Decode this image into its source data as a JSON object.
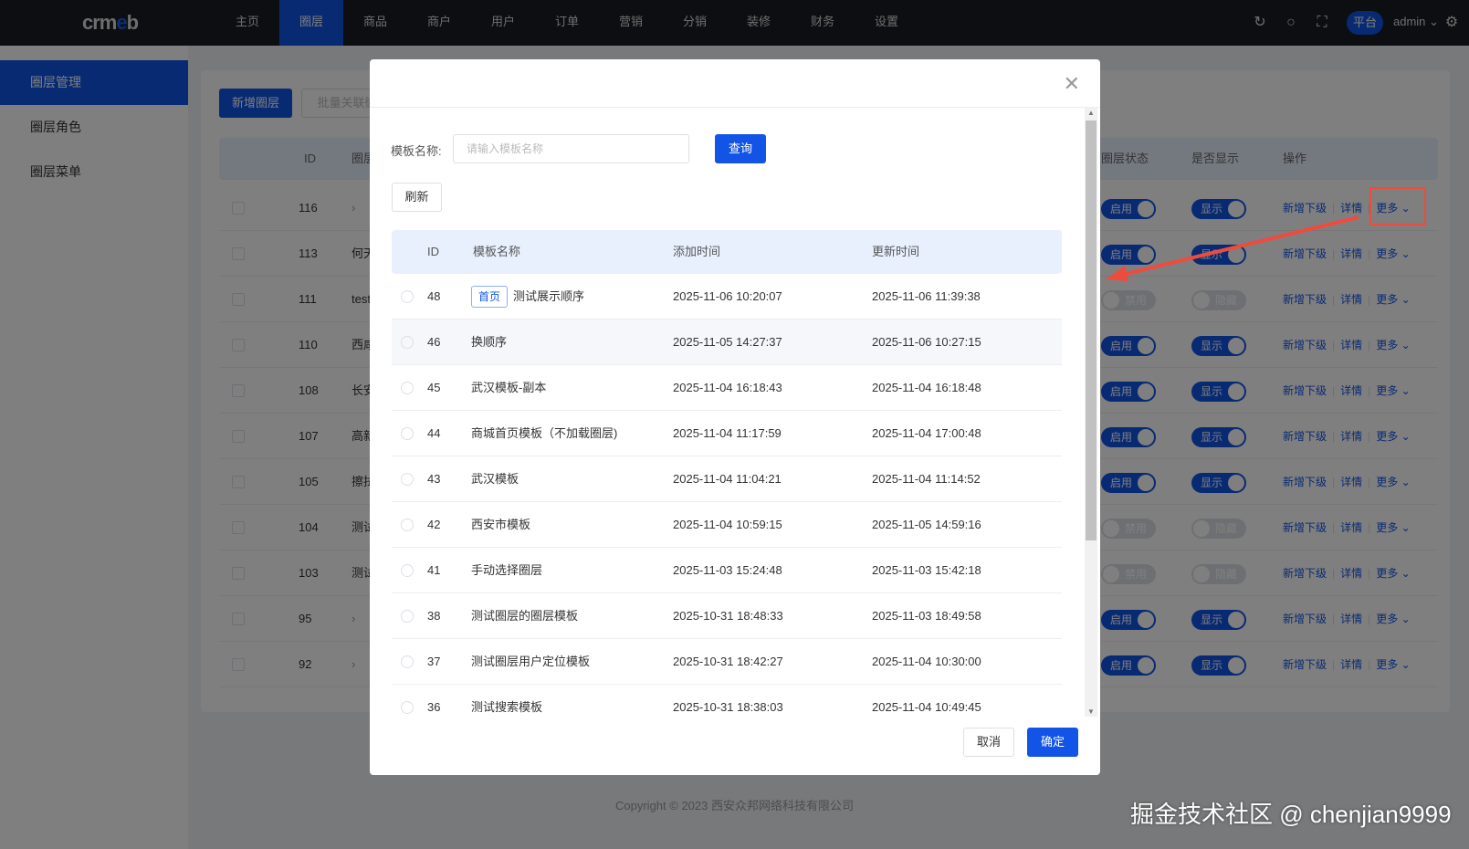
{
  "topnav": {
    "logo": "crmeb",
    "items": [
      "主页",
      "圈层",
      "商品",
      "商户",
      "用户",
      "订单",
      "营销",
      "分销",
      "装修",
      "财务",
      "设置"
    ],
    "active_index": 1,
    "platform": "平台",
    "user": "admin",
    "icons": [
      "refresh-icon",
      "search-icon",
      "fullscreen-icon",
      "gear-icon"
    ]
  },
  "sidebar": {
    "items": [
      "圈层管理",
      "圈层角色",
      "圈层菜单"
    ],
    "active_index": 0
  },
  "toolbar": {
    "add_label": "新增圈层",
    "batch_label": "批量关联微"
  },
  "bg_table": {
    "headers": {
      "id": "ID",
      "name": "圈层",
      "status": "圈层状态",
      "display": "是否显示",
      "actions": "操作"
    },
    "action_labels": {
      "add_child": "新增下级",
      "detail": "详情",
      "more": "更多"
    },
    "toggle_labels": {
      "on": "启用",
      "off": "禁用",
      "show": "显示",
      "hide": "隐藏"
    },
    "rows": [
      {
        "id": "116",
        "name": "",
        "expand": true,
        "enabled": true
      },
      {
        "id": "113",
        "name": "何天",
        "expand": false,
        "enabled": true
      },
      {
        "id": "111",
        "name": "test",
        "expand": false,
        "enabled": false
      },
      {
        "id": "110",
        "name": "西咸",
        "expand": false,
        "enabled": true
      },
      {
        "id": "108",
        "name": "长安",
        "expand": false,
        "enabled": true
      },
      {
        "id": "107",
        "name": "高新",
        "expand": false,
        "enabled": true
      },
      {
        "id": "105",
        "name": "擦拭",
        "expand": false,
        "enabled": true
      },
      {
        "id": "104",
        "name": "测试",
        "expand": false,
        "enabled": false
      },
      {
        "id": "103",
        "name": "测试",
        "expand": false,
        "enabled": false
      },
      {
        "id": "95",
        "name": "",
        "expand": true,
        "enabled": true
      },
      {
        "id": "92",
        "name": "",
        "expand": true,
        "enabled": true
      }
    ]
  },
  "footer": {
    "copyright": "Copyright © 2023 西安众邦网络科技有限公司"
  },
  "modal": {
    "search_label": "模板名称:",
    "search_placeholder": "请输入模板名称",
    "query_label": "查询",
    "refresh_label": "刷新",
    "cancel_label": "取消",
    "confirm_label": "确定",
    "headers": {
      "id": "ID",
      "name": "模板名称",
      "created": "添加时间",
      "updated": "更新时间"
    },
    "rows": [
      {
        "id": "48",
        "tag": "首页",
        "name": "测试展示顺序",
        "created": "2025-11-06 10:20:07",
        "updated": "2025-11-06 11:39:38"
      },
      {
        "id": "46",
        "tag": "",
        "name": "换顺序",
        "created": "2025-11-05 14:27:37",
        "updated": "2025-11-06 10:27:15"
      },
      {
        "id": "45",
        "tag": "",
        "name": "武汉模板-副本",
        "created": "2025-11-04 16:18:43",
        "updated": "2025-11-04 16:18:48"
      },
      {
        "id": "44",
        "tag": "",
        "name": "商城首页模板（不加载圈层)",
        "created": "2025-11-04 11:17:59",
        "updated": "2025-11-04 17:00:48"
      },
      {
        "id": "43",
        "tag": "",
        "name": "武汉模板",
        "created": "2025-11-04 11:04:21",
        "updated": "2025-11-04 11:14:52"
      },
      {
        "id": "42",
        "tag": "",
        "name": "西安市模板",
        "created": "2025-11-04 10:59:15",
        "updated": "2025-11-05 14:59:16"
      },
      {
        "id": "41",
        "tag": "",
        "name": "手动选择圈层",
        "created": "2025-11-03 15:24:48",
        "updated": "2025-11-03 15:42:18"
      },
      {
        "id": "38",
        "tag": "",
        "name": "测试圈层的圈层模板",
        "created": "2025-10-31 18:48:33",
        "updated": "2025-11-03 18:49:58"
      },
      {
        "id": "37",
        "tag": "",
        "name": "测试圈层用户定位模板",
        "created": "2025-10-31 18:42:27",
        "updated": "2025-11-04 10:30:00"
      },
      {
        "id": "36",
        "tag": "",
        "name": "测试搜索模板",
        "created": "2025-10-31 18:38:03",
        "updated": "2025-11-04 10:49:45"
      }
    ],
    "hovered_row": 1
  },
  "watermark": "掘金技术社区 @ chenjian9999",
  "colors": {
    "primary": "#1154e6",
    "nav_bg": "#1b1d22",
    "annotation": "#ef4b3d"
  }
}
